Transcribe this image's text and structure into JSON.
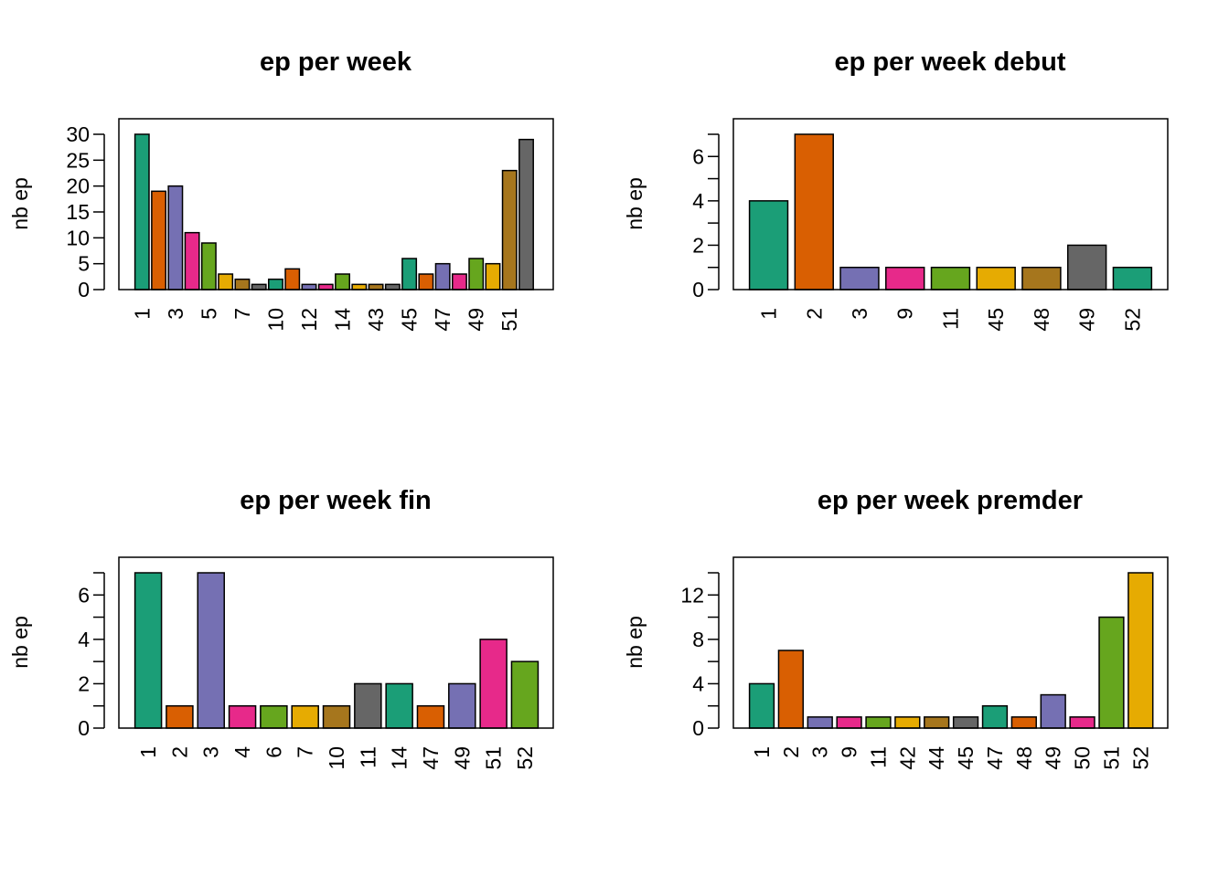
{
  "chart_data": [
    {
      "type": "bar",
      "title": "ep per week",
      "xlabel": "",
      "ylabel": "nb ep",
      "ylim": [
        0,
        30
      ],
      "yticks": [
        0,
        5,
        10,
        15,
        20,
        25,
        30
      ],
      "ytick_minor": [],
      "categories": [
        "1",
        "2",
        "3",
        "4",
        "5",
        "6",
        "7",
        "8",
        "10",
        "11",
        "12",
        "13",
        "14",
        "15",
        "43",
        "44",
        "45",
        "46",
        "47",
        "48",
        "49",
        "50",
        "51",
        "52"
      ],
      "visible_category_labels": [
        "1",
        "3",
        "5",
        "7",
        "10",
        "12",
        "14",
        "43",
        "45",
        "47",
        "49",
        "51"
      ],
      "values": [
        30,
        19,
        20,
        11,
        9,
        3,
        2,
        1,
        2,
        4,
        1,
        1,
        3,
        1,
        1,
        1,
        6,
        3,
        5,
        3,
        6,
        5,
        23,
        29
      ]
    },
    {
      "type": "bar",
      "title": "ep per week debut",
      "xlabel": "",
      "ylabel": "nb ep",
      "ylim": [
        0,
        7
      ],
      "yticks": [
        0,
        2,
        4,
        6
      ],
      "ytick_minor": [
        1,
        3,
        5,
        7
      ],
      "categories": [
        "1",
        "2",
        "3",
        "9",
        "11",
        "45",
        "48",
        "49",
        "52"
      ],
      "visible_category_labels": [
        "1",
        "2",
        "3",
        "9",
        "11",
        "45",
        "48",
        "49",
        "52"
      ],
      "values": [
        4,
        7,
        1,
        1,
        1,
        1,
        1,
        2,
        1
      ]
    },
    {
      "type": "bar",
      "title": "ep per week fin",
      "xlabel": "",
      "ylabel": "nb ep",
      "ylim": [
        0,
        7
      ],
      "yticks": [
        0,
        2,
        4,
        6
      ],
      "ytick_minor": [
        1,
        3,
        5,
        7
      ],
      "categories": [
        "1",
        "2",
        "3",
        "4",
        "6",
        "7",
        "10",
        "11",
        "14",
        "47",
        "49",
        "51",
        "52"
      ],
      "visible_category_labels": [
        "1",
        "2",
        "3",
        "4",
        "6",
        "7",
        "10",
        "11",
        "14",
        "47",
        "49",
        "51",
        "52"
      ],
      "values": [
        7,
        1,
        7,
        1,
        1,
        1,
        1,
        2,
        2,
        1,
        2,
        4,
        3
      ]
    },
    {
      "type": "bar",
      "title": "ep per week premder",
      "xlabel": "",
      "ylabel": "nb ep",
      "ylim": [
        0,
        14
      ],
      "yticks": [
        0,
        4,
        8,
        12
      ],
      "ytick_minor": [
        2,
        6,
        10,
        14
      ],
      "categories": [
        "1",
        "2",
        "3",
        "9",
        "11",
        "42",
        "44",
        "45",
        "47",
        "48",
        "49",
        "50",
        "51",
        "52"
      ],
      "visible_category_labels": [
        "1",
        "2",
        "3",
        "9",
        "11",
        "42",
        "44",
        "45",
        "47",
        "48",
        "49",
        "50",
        "51",
        "52"
      ],
      "values": [
        4,
        7,
        1,
        1,
        1,
        1,
        1,
        1,
        2,
        1,
        3,
        1,
        10,
        14
      ]
    }
  ],
  "palette": [
    "#1B9E77",
    "#D95F02",
    "#7570B3",
    "#E7298A",
    "#66A61E",
    "#E6AB02",
    "#A6761D",
    "#666666"
  ]
}
